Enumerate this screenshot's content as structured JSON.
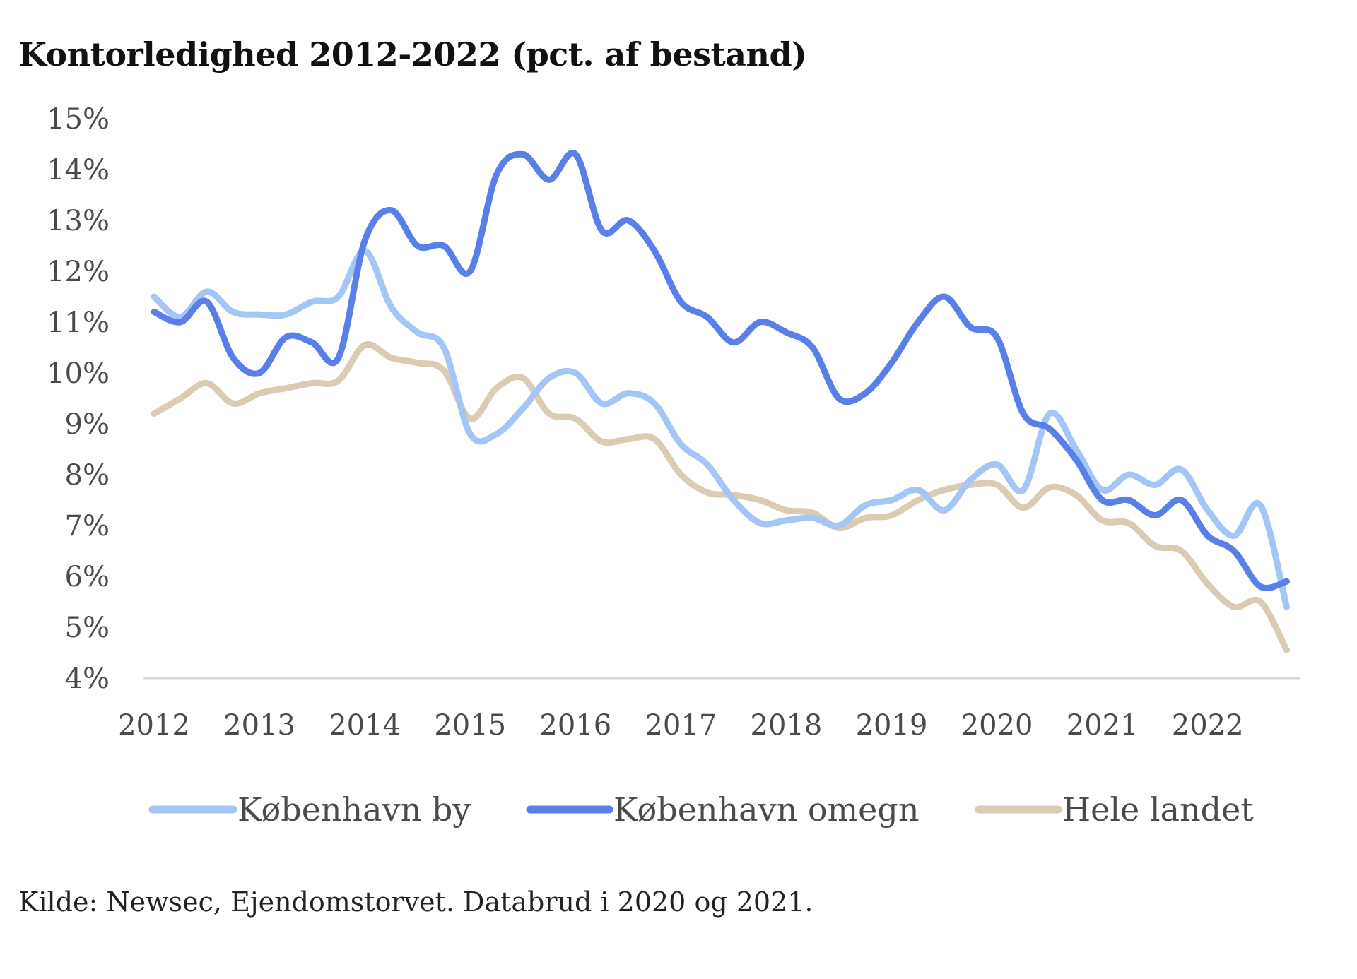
{
  "chart_data": {
    "type": "line",
    "title": "Kontorledighed 2012-2022 (pct. af bestand)",
    "xlabel": "",
    "ylabel": "",
    "x_ticks": [
      "2012",
      "2013",
      "2014",
      "2015",
      "2016",
      "2017",
      "2018",
      "2019",
      "2020",
      "2021",
      "2022"
    ],
    "y_ticks": [
      "4%",
      "5%",
      "6%",
      "7%",
      "8%",
      "9%",
      "10%",
      "11%",
      "12%",
      "13%",
      "14%",
      "15%"
    ],
    "ylim": [
      4,
      15
    ],
    "xlim": [
      2012,
      2022.8
    ],
    "grid": false,
    "legend_position": "bottom",
    "series": [
      {
        "name": "København by",
        "color": "#a4c6f7",
        "x": [
          2012.0,
          2012.25,
          2012.5,
          2012.75,
          2013.0,
          2013.25,
          2013.5,
          2013.75,
          2014.0,
          2014.25,
          2014.5,
          2014.75,
          2015.0,
          2015.25,
          2015.5,
          2015.75,
          2016.0,
          2016.25,
          2016.5,
          2016.75,
          2017.0,
          2017.25,
          2017.5,
          2017.75,
          2018.0,
          2018.25,
          2018.5,
          2018.75,
          2019.0,
          2019.25,
          2019.5,
          2019.75,
          2020.0,
          2020.25,
          2020.5,
          2020.75,
          2021.0,
          2021.25,
          2021.5,
          2021.75,
          2022.0,
          2022.25,
          2022.5,
          2022.75
        ],
        "values": [
          11.5,
          11.1,
          11.6,
          11.2,
          11.15,
          11.15,
          11.4,
          11.5,
          12.4,
          11.3,
          10.8,
          10.5,
          8.8,
          8.8,
          9.3,
          9.9,
          10.0,
          9.4,
          9.6,
          9.4,
          8.6,
          8.2,
          7.5,
          7.05,
          7.1,
          7.15,
          7.0,
          7.4,
          7.5,
          7.7,
          7.3,
          7.9,
          8.2,
          7.7,
          9.2,
          8.5,
          7.7,
          8.0,
          7.8,
          8.1,
          7.3,
          6.8,
          7.4,
          5.4
        ]
      },
      {
        "name": "København omegn",
        "color": "#5b7fe8",
        "x": [
          2012.0,
          2012.25,
          2012.5,
          2012.75,
          2013.0,
          2013.25,
          2013.5,
          2013.75,
          2014.0,
          2014.25,
          2014.5,
          2014.75,
          2015.0,
          2015.25,
          2015.5,
          2015.75,
          2016.0,
          2016.25,
          2016.5,
          2016.75,
          2017.0,
          2017.25,
          2017.5,
          2017.75,
          2018.0,
          2018.25,
          2018.5,
          2018.75,
          2019.0,
          2019.25,
          2019.5,
          2019.75,
          2020.0,
          2020.25,
          2020.5,
          2020.75,
          2021.0,
          2021.25,
          2021.5,
          2021.75,
          2022.0,
          2022.25,
          2022.5,
          2022.75
        ],
        "values": [
          11.2,
          11.0,
          11.4,
          10.3,
          10.0,
          10.7,
          10.6,
          10.3,
          12.6,
          13.2,
          12.5,
          12.5,
          12.0,
          13.9,
          14.3,
          13.8,
          14.3,
          12.8,
          13.0,
          12.4,
          11.4,
          11.1,
          10.6,
          11.0,
          10.8,
          10.5,
          9.5,
          9.6,
          10.2,
          11.0,
          11.5,
          10.9,
          10.7,
          9.2,
          8.9,
          8.3,
          7.5,
          7.5,
          7.2,
          7.5,
          6.8,
          6.5,
          5.8,
          5.9
        ]
      },
      {
        "name": "Hele landet",
        "color": "#dbcbb3",
        "x": [
          2012.0,
          2012.25,
          2012.5,
          2012.75,
          2013.0,
          2013.25,
          2013.5,
          2013.75,
          2014.0,
          2014.25,
          2014.5,
          2014.75,
          2015.0,
          2015.25,
          2015.5,
          2015.75,
          2016.0,
          2016.25,
          2016.5,
          2016.75,
          2017.0,
          2017.25,
          2017.5,
          2017.75,
          2018.0,
          2018.25,
          2018.5,
          2018.75,
          2019.0,
          2019.25,
          2019.5,
          2019.75,
          2020.0,
          2020.25,
          2020.5,
          2020.75,
          2021.0,
          2021.25,
          2021.5,
          2021.75,
          2022.0,
          2022.25,
          2022.5,
          2022.75
        ],
        "values": [
          9.2,
          9.5,
          9.8,
          9.4,
          9.6,
          9.7,
          9.8,
          9.85,
          10.55,
          10.3,
          10.2,
          10.05,
          9.1,
          9.7,
          9.9,
          9.2,
          9.1,
          8.65,
          8.7,
          8.7,
          8.0,
          7.65,
          7.6,
          7.5,
          7.3,
          7.25,
          6.95,
          7.15,
          7.2,
          7.5,
          7.7,
          7.8,
          7.8,
          7.35,
          7.75,
          7.6,
          7.1,
          7.05,
          6.6,
          6.5,
          5.85,
          5.4,
          5.5,
          4.55
        ]
      }
    ]
  },
  "source_note": "Kilde: Newsec, Ejendomstorvet. Databrud i 2020 og 2021."
}
